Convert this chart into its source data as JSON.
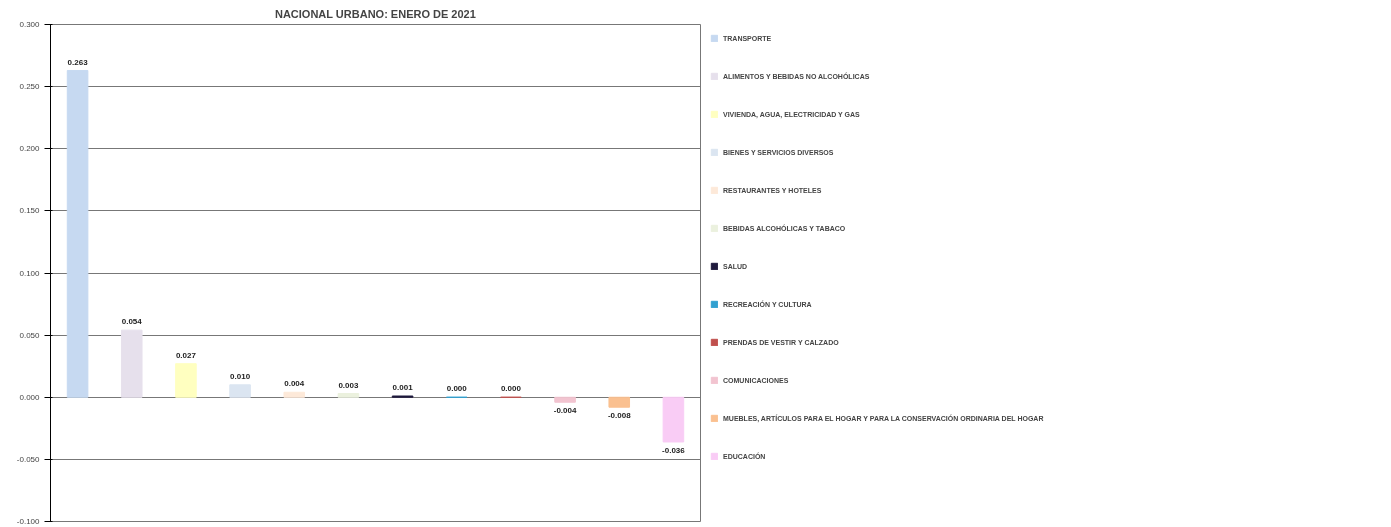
{
  "chart_data": {
    "type": "bar",
    "title": "NACIONAL URBANO: ENERO DE 2021",
    "categories": [
      null,
      null,
      null,
      null,
      null,
      null,
      null,
      null,
      null,
      null,
      null,
      null
    ],
    "series": [
      {
        "name": "TRANSPORTE",
        "color": "#c6d9f1",
        "values": [
          0.263,
          null,
          null,
          null,
          null,
          null,
          null,
          null,
          null,
          null,
          null,
          null
        ]
      },
      {
        "name": "ALIMENTOS Y BEBIDAS NO ALCOHÓLICAS",
        "color": "#e6e0ec",
        "values": [
          null,
          0.054,
          null,
          null,
          null,
          null,
          null,
          null,
          null,
          null,
          null,
          null
        ]
      },
      {
        "name": "VIVIENDA, AGUA, ELECTRICIDAD Y GAS",
        "color": "#ffffc0",
        "values": [
          null,
          null,
          0.027,
          null,
          null,
          null,
          null,
          null,
          null,
          null,
          null,
          null
        ]
      },
      {
        "name": "BIENES Y SERVICIOS DIVERSOS",
        "color": "#dbe5f1",
        "values": [
          null,
          null,
          null,
          0.01,
          null,
          null,
          null,
          null,
          null,
          null,
          null,
          null
        ]
      },
      {
        "name": "RESTAURANTES Y HOTELES",
        "color": "#fde9d9",
        "values": [
          null,
          null,
          null,
          null,
          0.004,
          null,
          null,
          null,
          null,
          null,
          null,
          null
        ]
      },
      {
        "name": "BEBIDAS ALCOHÓLICAS Y TABACO",
        "color": "#ebf1de",
        "values": [
          null,
          null,
          null,
          null,
          null,
          0.003,
          null,
          null,
          null,
          null,
          null,
          null
        ]
      },
      {
        "name": "SALUD",
        "color": "#1f1a3d",
        "values": [
          null,
          null,
          null,
          null,
          null,
          null,
          0.001,
          null,
          null,
          null,
          null,
          null
        ]
      },
      {
        "name": "RECREACIÓN Y CULTURA",
        "color": "#31a0d0",
        "values": [
          null,
          null,
          null,
          null,
          null,
          null,
          null,
          0.0,
          null,
          null,
          null,
          null
        ]
      },
      {
        "name": "PRENDAS DE VESTIR Y CALZADO",
        "color": "#c0504d",
        "values": [
          null,
          null,
          null,
          null,
          null,
          null,
          null,
          null,
          0.0,
          null,
          null,
          null
        ]
      },
      {
        "name": "COMUNICACIONES",
        "color": "#f2c4d0",
        "values": [
          null,
          null,
          null,
          null,
          null,
          null,
          null,
          null,
          null,
          -0.004,
          null,
          null
        ]
      },
      {
        "name": "MUEBLES, ARTÍCULOS PARA EL HOGAR Y PARA LA CONSERVACIÓN ORDINARIA DEL HOGAR",
        "color": "#fac090",
        "values": [
          null,
          null,
          null,
          null,
          null,
          null,
          null,
          null,
          null,
          null,
          -0.008,
          null
        ]
      },
      {
        "name": "EDUCACIÓN",
        "color": "#f9ccf5",
        "values": [
          null,
          null,
          null,
          null,
          null,
          null,
          null,
          null,
          null,
          null,
          null,
          -0.036
        ]
      }
    ],
    "ylim": [
      -0.1,
      0.3
    ],
    "yticks": [
      {
        "value": -0.1,
        "label": "-0.100"
      },
      {
        "value": -0.05,
        "label": "-0.050"
      },
      {
        "value": 0,
        "label": "0.000"
      },
      {
        "value": 0.05,
        "label": "0.050"
      },
      {
        "value": 0.1,
        "label": "0.100"
      },
      {
        "value": 0.15,
        "label": "0.150"
      },
      {
        "value": 0.2,
        "label": "0.200"
      },
      {
        "value": 0.25,
        "label": "0.250"
      },
      {
        "value": 0.3,
        "label": "0.300"
      }
    ],
    "value_labels": [
      "0.263",
      "0.054",
      "0.027",
      "0.010",
      "0.004",
      "0.003",
      "0.001",
      "0.000",
      "0.000",
      "-0.004",
      "-0.008",
      "-0.036"
    ],
    "grid": "y",
    "legend": "right",
    "tick_labels": "y"
  }
}
